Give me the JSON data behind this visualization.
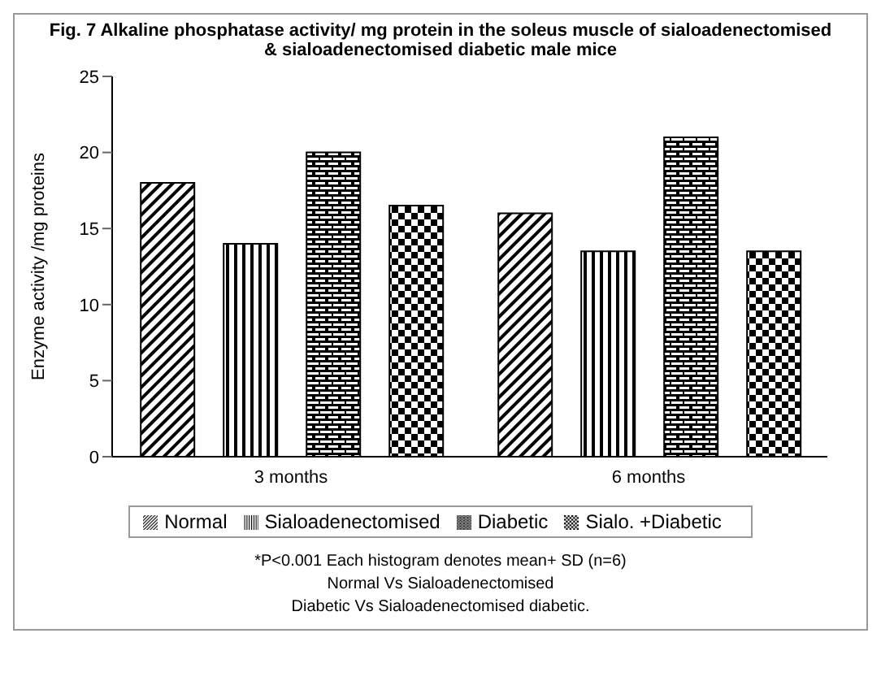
{
  "chart_data": {
    "type": "bar",
    "title": "Fig. 7  Alkaline phosphatase activity/ mg protein in the soleus muscle of sialoadenectomised & sialoadenectomised diabetic male mice",
    "ylabel": "Enzyme activity /mg proteins",
    "categories": [
      "3 months",
      "6 months"
    ],
    "series": [
      {
        "name": "Normal",
        "color": "#000000",
        "values": [
          18,
          16
        ]
      },
      {
        "name": "Sialoadenectomised",
        "color": "#000000",
        "values": [
          14,
          13.5
        ]
      },
      {
        "name": "Diabetic",
        "color": "#000000",
        "values": [
          20,
          21
        ]
      },
      {
        "name": "Sialo. +Diabetic",
        "color": "#000000",
        "values": [
          16.5,
          13.5
        ]
      }
    ],
    "ylim": [
      0,
      25
    ],
    "yticks": [
      0,
      5,
      10,
      15,
      20,
      25
    ],
    "grid": false,
    "legend": "bottom",
    "annotations": [
      "*P<0.001  Each histogram denotes mean+ SD (n=6)",
      "Normal Vs Sialoadenectomised",
      "Diabetic Vs Sialoadenectomised diabetic."
    ]
  }
}
